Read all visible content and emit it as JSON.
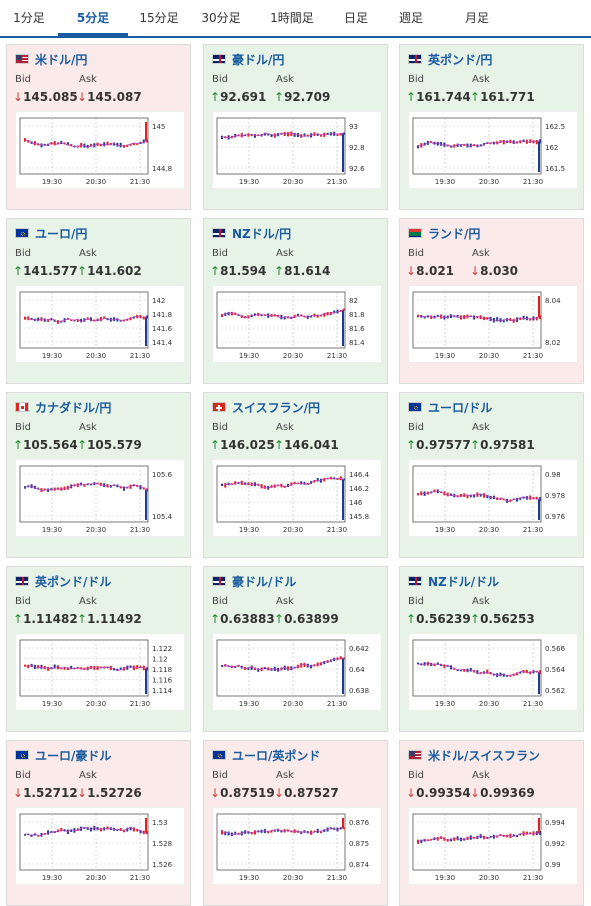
{
  "tabs": [
    {
      "label": "1分足",
      "active": false
    },
    {
      "label": "5分足",
      "active": true
    },
    {
      "label": "15分足",
      "active": false
    },
    {
      "label": "30分足",
      "active": false
    },
    {
      "label": "1時間足",
      "active": false
    },
    {
      "label": "日足",
      "active": false
    },
    {
      "label": "週足",
      "active": false
    },
    {
      "label": "月足",
      "active": false
    }
  ],
  "labels": {
    "bid": "Bid",
    "ask": "Ask"
  },
  "colors": {
    "accent": "#1a5aa0",
    "up_bg": "#e8f3e8",
    "down_bg": "#fbeaea",
    "up_arrow": "#1a8a2a",
    "down_arrow": "#d23a3a",
    "candle_up": "#1f3a93",
    "candle_down": "#e02020",
    "ma_line": "#c040c0"
  },
  "x_ticks": [
    "19:30",
    "20:30",
    "21:30"
  ],
  "pairs": [
    {
      "name": "米ドル/円",
      "flag": "us-jp",
      "dir": "down",
      "bid": "145.085",
      "ask": "145.087",
      "bid_dir": "down",
      "ask_dir": "down",
      "y_ticks": [
        "145",
        "144.8"
      ]
    },
    {
      "name": "豪ドル/円",
      "flag": "au-jp",
      "dir": "up",
      "bid": "92.691",
      "ask": "92.709",
      "bid_dir": "up",
      "ask_dir": "up",
      "y_ticks": [
        "93",
        "92.8",
        "92.6"
      ]
    },
    {
      "name": "英ポンド/円",
      "flag": "gb-jp",
      "dir": "up",
      "bid": "161.744",
      "ask": "161.771",
      "bid_dir": "up",
      "ask_dir": "up",
      "y_ticks": [
        "162.5",
        "162",
        "161.5"
      ]
    },
    {
      "name": "ユーロ/円",
      "flag": "eu-jp",
      "dir": "up",
      "bid": "141.577",
      "ask": "141.602",
      "bid_dir": "up",
      "ask_dir": "up",
      "y_ticks": [
        "142",
        "141.8",
        "141.6",
        "141.4"
      ]
    },
    {
      "name": "NZドル/円",
      "flag": "nz-jp",
      "dir": "up",
      "bid": "81.594",
      "ask": "81.614",
      "bid_dir": "up",
      "ask_dir": "up",
      "y_ticks": [
        "82",
        "81.8",
        "81.6",
        "81.4"
      ]
    },
    {
      "name": "ランド/円",
      "flag": "za-jp",
      "dir": "down",
      "bid": "8.021",
      "ask": "8.030",
      "bid_dir": "down",
      "ask_dir": "down",
      "y_ticks": [
        "8.04",
        "8.02"
      ]
    },
    {
      "name": "カナダドル/円",
      "flag": "ca-jp",
      "dir": "up",
      "bid": "105.564",
      "ask": "105.579",
      "bid_dir": "up",
      "ask_dir": "up",
      "y_ticks": [
        "105.6",
        "105.4"
      ]
    },
    {
      "name": "スイスフラン/円",
      "flag": "ch-jp",
      "dir": "up",
      "bid": "146.025",
      "ask": "146.041",
      "bid_dir": "up",
      "ask_dir": "up",
      "y_ticks": [
        "146.4",
        "146.2",
        "146",
        "145.8"
      ]
    },
    {
      "name": "ユーロ/ドル",
      "flag": "eu-us",
      "dir": "up",
      "bid": "0.97577",
      "ask": "0.97581",
      "bid_dir": "up",
      "ask_dir": "up",
      "y_ticks": [
        "0.98",
        "0.978",
        "0.976"
      ]
    },
    {
      "name": "英ポンド/ドル",
      "flag": "gb-us",
      "dir": "up",
      "bid": "1.11482",
      "ask": "1.11492",
      "bid_dir": "up",
      "ask_dir": "up",
      "y_ticks": [
        "1.122",
        "1.12",
        "1.118",
        "1.116",
        "1.114"
      ]
    },
    {
      "name": "豪ドル/ドル",
      "flag": "au-us",
      "dir": "up",
      "bid": "0.63883",
      "ask": "0.63899",
      "bid_dir": "up",
      "ask_dir": "up",
      "y_ticks": [
        "0.642",
        "0.64",
        "0.638"
      ]
    },
    {
      "name": "NZドル/ドル",
      "flag": "nz-us",
      "dir": "up",
      "bid": "0.56239",
      "ask": "0.56253",
      "bid_dir": "up",
      "ask_dir": "up",
      "y_ticks": [
        "0.566",
        "0.564",
        "0.562"
      ]
    },
    {
      "name": "ユーロ/豪ドル",
      "flag": "eu-au",
      "dir": "down",
      "bid": "1.52712",
      "ask": "1.52726",
      "bid_dir": "down",
      "ask_dir": "down",
      "y_ticks": [
        "1.53",
        "1.528",
        "1.526"
      ]
    },
    {
      "name": "ユーロ/英ポンド",
      "flag": "eu-gb",
      "dir": "down",
      "bid": "0.87519",
      "ask": "0.87527",
      "bid_dir": "down",
      "ask_dir": "down",
      "y_ticks": [
        "0.876",
        "0.875",
        "0.874"
      ]
    },
    {
      "name": "米ドル/スイスフラン",
      "flag": "us-ch",
      "dir": "down",
      "bid": "0.99354",
      "ask": "0.99369",
      "bid_dir": "down",
      "ask_dir": "down",
      "y_ticks": [
        "0.994",
        "0.992",
        "0.99"
      ]
    }
  ]
}
